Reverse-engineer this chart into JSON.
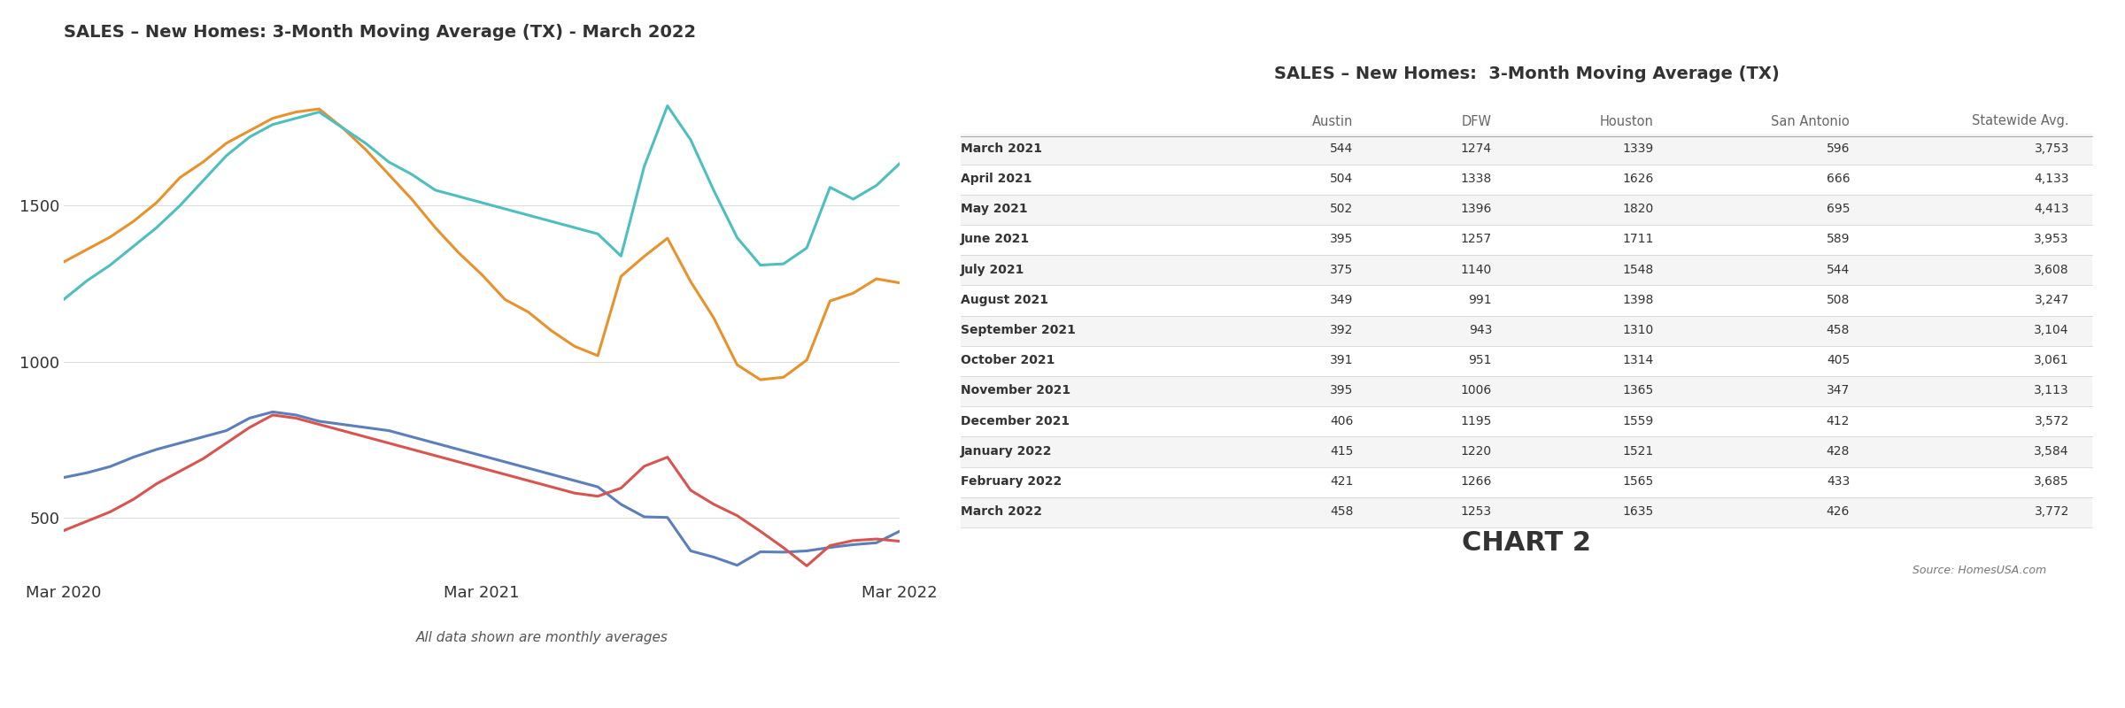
{
  "chart_title": "SALES – New Homes: 3-Month Moving Average (TX) - March 2022",
  "table_title": "SALES – New Homes:  3-Month Moving Average (TX)",
  "subtitle": "All data shown are monthly averages",
  "source": "Source: HomesUSA.com",
  "chart2_label": "CHART 2",
  "x_labels": [
    "Mar 2020",
    "Mar 2021",
    "Mar 2022"
  ],
  "colors": {
    "Austin": "#5a7fba",
    "DFW": "#e8922c",
    "Houston": "#4dbfbf",
    "San Antonio": "#d9534f"
  },
  "series": {
    "Austin": [
      630,
      645,
      665,
      695,
      720,
      740,
      760,
      780,
      820,
      840,
      830,
      810,
      800,
      790,
      780,
      760,
      740,
      720,
      700,
      680,
      660,
      640,
      620,
      600,
      544,
      504,
      502,
      395,
      375,
      349,
      392,
      391,
      395,
      406,
      415,
      421,
      458
    ],
    "DFW": [
      1320,
      1360,
      1400,
      1450,
      1510,
      1590,
      1640,
      1700,
      1740,
      1780,
      1800,
      1810,
      1750,
      1680,
      1600,
      1520,
      1430,
      1350,
      1280,
      1200,
      1160,
      1100,
      1050,
      1020,
      1274,
      1338,
      1396,
      1257,
      1140,
      991,
      943,
      951,
      1006,
      1195,
      1220,
      1266,
      1253
    ],
    "Houston": [
      1200,
      1260,
      1310,
      1370,
      1430,
      1500,
      1580,
      1660,
      1720,
      1760,
      1780,
      1800,
      1750,
      1700,
      1640,
      1600,
      1550,
      1530,
      1510,
      1490,
      1470,
      1450,
      1430,
      1410,
      1339,
      1626,
      1820,
      1711,
      1548,
      1398,
      1310,
      1314,
      1365,
      1559,
      1521,
      1565,
      1635
    ],
    "San Antonio": [
      460,
      490,
      520,
      560,
      610,
      650,
      690,
      740,
      790,
      830,
      820,
      800,
      780,
      760,
      740,
      720,
      700,
      680,
      660,
      640,
      620,
      600,
      580,
      570,
      596,
      666,
      695,
      589,
      544,
      508,
      458,
      405,
      347,
      412,
      428,
      433,
      426
    ]
  },
  "table_rows": [
    {
      "label": "March 2021",
      "Austin": 544,
      "DFW": 1274,
      "Houston": 1339,
      "San Antonio": 596,
      "Statewide": 3753
    },
    {
      "label": "April 2021",
      "Austin": 504,
      "DFW": 1338,
      "Houston": 1626,
      "San Antonio": 666,
      "Statewide": 4133
    },
    {
      "label": "May 2021",
      "Austin": 502,
      "DFW": 1396,
      "Houston": 1820,
      "San Antonio": 695,
      "Statewide": 4413
    },
    {
      "label": "June 2021",
      "Austin": 395,
      "DFW": 1257,
      "Houston": 1711,
      "San Antonio": 589,
      "Statewide": 3953
    },
    {
      "label": "July 2021",
      "Austin": 375,
      "DFW": 1140,
      "Houston": 1548,
      "San Antonio": 544,
      "Statewide": 3608
    },
    {
      "label": "August 2021",
      "Austin": 349,
      "DFW": 991,
      "Houston": 1398,
      "San Antonio": 508,
      "Statewide": 3247
    },
    {
      "label": "September 2021",
      "Austin": 392,
      "DFW": 943,
      "Houston": 1310,
      "San Antonio": 458,
      "Statewide": 3104
    },
    {
      "label": "October 2021",
      "Austin": 391,
      "DFW": 951,
      "Houston": 1314,
      "San Antonio": 405,
      "Statewide": 3061
    },
    {
      "label": "November 2021",
      "Austin": 395,
      "DFW": 1006,
      "Houston": 1365,
      "San Antonio": 347,
      "Statewide": 3113
    },
    {
      "label": "December 2021",
      "Austin": 406,
      "DFW": 1195,
      "Houston": 1559,
      "San Antonio": 412,
      "Statewide": 3572
    },
    {
      "label": "January 2022",
      "Austin": 415,
      "DFW": 1220,
      "Houston": 1521,
      "San Antonio": 428,
      "Statewide": 3584
    },
    {
      "label": "February 2022",
      "Austin": 421,
      "DFW": 1266,
      "Houston": 1565,
      "San Antonio": 433,
      "Statewide": 3685
    },
    {
      "label": "March 2022",
      "Austin": 458,
      "DFW": 1253,
      "Houston": 1635,
      "San Antonio": 426,
      "Statewide": 3772
    }
  ],
  "col_headers": [
    "",
    "Austin",
    "DFW",
    "Houston",
    "San Antonio",
    "Statewide Avg."
  ],
  "col_widths": [
    0.22,
    0.13,
    0.12,
    0.14,
    0.17,
    0.19
  ],
  "yticks": [
    500,
    1000,
    1500
  ],
  "ylim": [
    300,
    2000
  ],
  "background": "#ffffff",
  "grid_color": "#dddddd",
  "text_color": "#333333"
}
